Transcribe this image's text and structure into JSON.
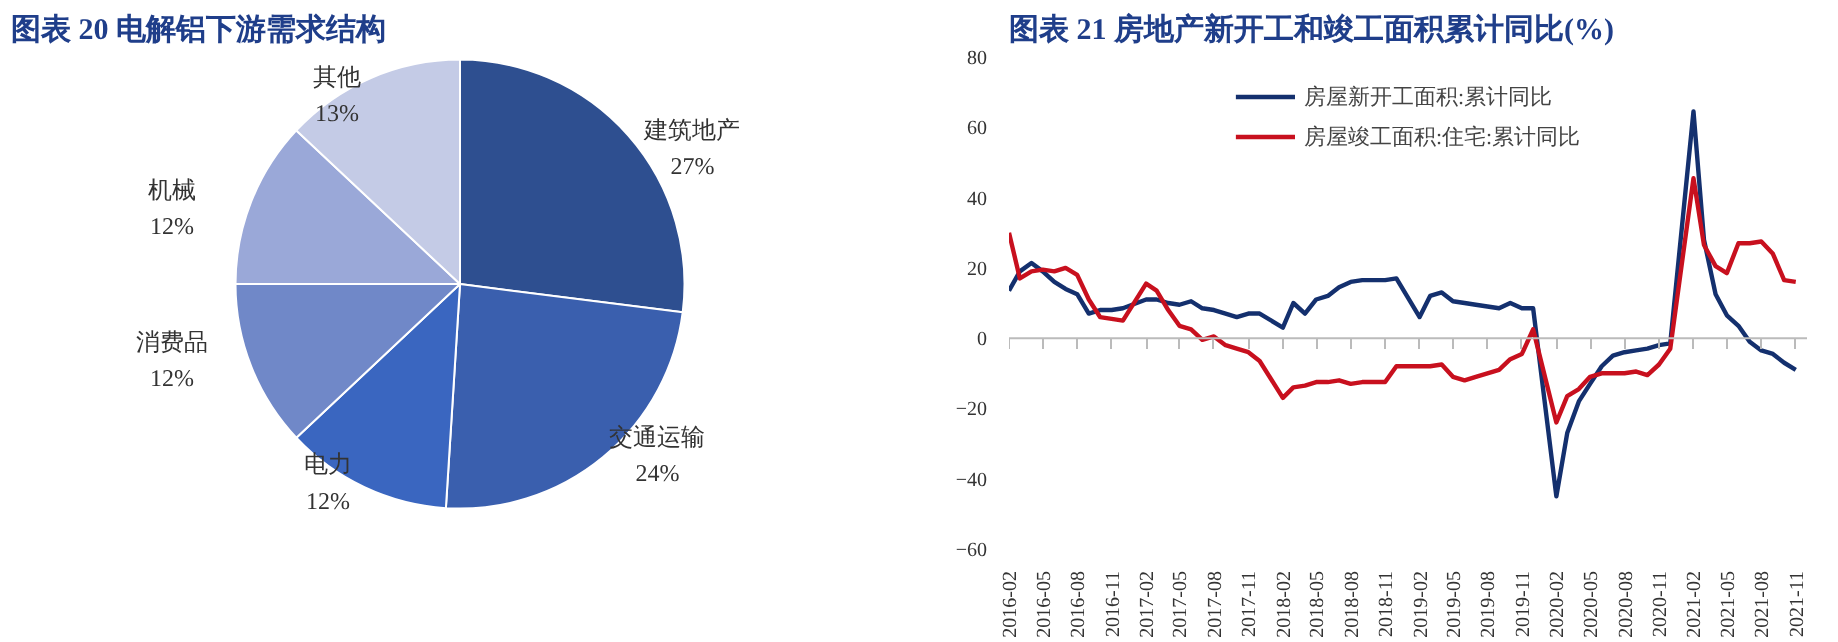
{
  "chart_data": [
    {
      "type": "pie",
      "title": "图表 20  电解铝下游需求结构",
      "categories": [
        "建筑地产",
        "交通运输",
        "电力",
        "消费品",
        "机械",
        "其他"
      ],
      "values": [
        27,
        24,
        12,
        12,
        12,
        13
      ],
      "colors": [
        "#2e4f90",
        "#3a5fae",
        "#3a66c0",
        "#7088c8",
        "#9aa8d8",
        "#c4cbe6"
      ],
      "value_labels": [
        "27%",
        "24%",
        "12%",
        "12%",
        "12%",
        "13%"
      ]
    },
    {
      "type": "line",
      "title": "图表 21  房地产新开工和竣工面积累计同比(%)",
      "legend": "top",
      "ylim": [
        -60,
        80
      ],
      "yticks": [
        -60,
        -40,
        -20,
        0,
        20,
        40,
        60,
        80
      ],
      "grid": false,
      "ref_lines": [
        {
          "axis": "y",
          "value": 0,
          "color": "#bbbbbb"
        }
      ],
      "line_style": "solid",
      "marker": "none",
      "x": [
        "2016-02",
        "2016-03",
        "2016-04",
        "2016-05",
        "2016-06",
        "2016-07",
        "2016-08",
        "2016-09",
        "2016-10",
        "2016-11",
        "2016-12",
        "2017-02",
        "2017-03",
        "2017-04",
        "2017-05",
        "2017-06",
        "2017-07",
        "2017-08",
        "2017-09",
        "2017-10",
        "2017-11",
        "2017-12",
        "2018-02",
        "2018-03",
        "2018-04",
        "2018-05",
        "2018-06",
        "2018-07",
        "2018-08",
        "2018-09",
        "2018-10",
        "2018-11",
        "2018-12",
        "2019-02",
        "2019-03",
        "2019-04",
        "2019-05",
        "2019-06",
        "2019-07",
        "2019-08",
        "2019-09",
        "2019-10",
        "2019-11",
        "2019-12",
        "2020-02",
        "2020-03",
        "2020-04",
        "2020-05",
        "2020-06",
        "2020-07",
        "2020-08",
        "2020-09",
        "2020-10",
        "2020-11",
        "2020-12",
        "2021-02",
        "2021-03",
        "2021-04",
        "2021-05",
        "2021-06",
        "2021-07",
        "2021-08",
        "2021-09",
        "2021-10",
        "2021-11"
      ],
      "xlim": [
        "2016-02",
        "2021-12"
      ],
      "xticks": [
        "2016-02",
        "2016-05",
        "2016-08",
        "2016-11",
        "2017-02",
        "2017-05",
        "2017-08",
        "2017-11",
        "2018-02",
        "2018-05",
        "2018-08",
        "2018-11",
        "2019-02",
        "2019-05",
        "2019-08",
        "2019-11",
        "2020-02",
        "2020-05",
        "2020-08",
        "2020-11",
        "2021-02",
        "2021-05",
        "2021-08",
        "2021-11"
      ],
      "series": [
        {
          "name": "房屋新开工面积:累计同比",
          "color": "#14306e",
          "values": [
            13.5,
            19,
            21.4,
            19,
            16,
            14,
            12.5,
            7,
            8,
            8,
            8.5,
            11,
            11,
            10,
            9.5,
            10.5,
            8.5,
            8,
            7,
            6,
            7,
            7,
            3,
            10,
            7,
            11,
            12,
            14.5,
            16,
            16.5,
            16.5,
            16.5,
            17,
            6,
            12,
            13,
            10.5,
            10,
            9.5,
            9,
            8.5,
            10,
            8.5,
            8.5,
            -45,
            -27,
            -18,
            -13,
            -8,
            -5,
            -4,
            -3.5,
            -3,
            -2,
            -1.5,
            64.5,
            28,
            12.5,
            6.5,
            3.5,
            -1,
            -3.5,
            -4.5,
            -7,
            -9
          ]
        },
        {
          "name": "房屋竣工面积:住宅:累计同比",
          "color": "#c8101e",
          "values": [
            30,
            17,
            19,
            19.5,
            19,
            20,
            18,
            11,
            6,
            5.5,
            5,
            15.5,
            13.5,
            8,
            3.5,
            2.5,
            -0.5,
            0.5,
            -2,
            -3,
            -4,
            -6.5,
            -17,
            -14,
            -13.5,
            -12.5,
            -12.5,
            -12,
            -13,
            -12.5,
            -12.5,
            -12.5,
            -8,
            -8,
            -8,
            -7.5,
            -11,
            -12,
            -11,
            -10,
            -9,
            -6,
            -4.5,
            2.5,
            -24,
            -16.5,
            -14.5,
            -11,
            -10,
            -10,
            -10,
            -9.5,
            -10.5,
            -7.5,
            -3,
            45.5,
            26.5,
            20.5,
            18.5,
            27,
            27,
            27.5,
            24,
            16.5,
            16
          ]
        }
      ]
    }
  ]
}
